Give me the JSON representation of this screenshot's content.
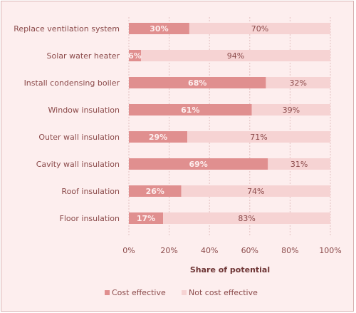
{
  "chart_data": {
    "type": "bar",
    "orientation": "horizontal",
    "stacked": true,
    "percent_stacked": true,
    "categories": [
      "Replace ventilation system",
      "Solar water heater",
      "Install condensing boiler",
      "Window insulation",
      "Outer wall insulation",
      "Cavity wall insulation",
      "Roof insulation",
      "Floor insulation"
    ],
    "series": [
      {
        "name": "Cost effective",
        "values": [
          30,
          6,
          68,
          61,
          29,
          69,
          26,
          17
        ],
        "labels": [
          "30%",
          "6%",
          "68%",
          "61%",
          "29%",
          "69%",
          "26%",
          "17%"
        ]
      },
      {
        "name": "Not cost effective",
        "values": [
          70,
          94,
          32,
          39,
          71,
          31,
          74,
          83
        ],
        "labels": [
          "70%",
          "94%",
          "32%",
          "39%",
          "71%",
          "31%",
          "74%",
          "83%"
        ]
      }
    ],
    "xlabel": "Share of potential",
    "xlim": [
      0,
      100
    ],
    "x_ticks": [
      "0%",
      "20%",
      "40%",
      "60%",
      "80%",
      "100%"
    ],
    "grid": true,
    "legend_position": "bottom",
    "colors": {
      "cost_effective": "#e08f8f",
      "not_cost_effective": "#f6d3d3",
      "grid": "#e3c1c1",
      "background": "#fdeeee"
    }
  }
}
